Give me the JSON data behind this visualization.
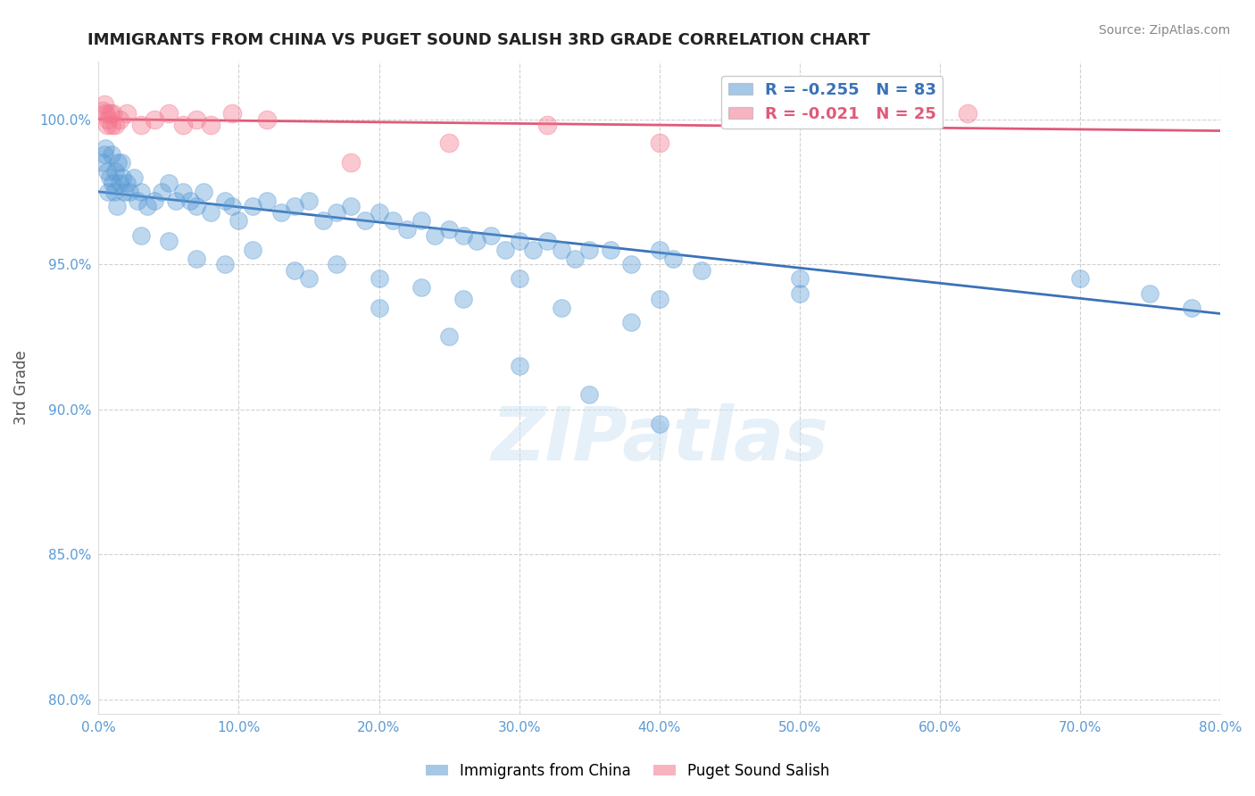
{
  "title": "IMMIGRANTS FROM CHINA VS PUGET SOUND SALISH 3RD GRADE CORRELATION CHART",
  "source_text": "Source: ZipAtlas.com",
  "ylabel": "3rd Grade",
  "xlim": [
    0.0,
    80.0
  ],
  "ylim": [
    79.5,
    102.0
  ],
  "xticks": [
    0.0,
    10.0,
    20.0,
    30.0,
    40.0,
    50.0,
    60.0,
    70.0,
    80.0
  ],
  "yticks": [
    80.0,
    85.0,
    90.0,
    95.0,
    100.0
  ],
  "ytick_labels": [
    "80.0%",
    "85.0%",
    "90.0%",
    "95.0%",
    "100.0%"
  ],
  "xtick_labels": [
    "0.0%",
    "10.0%",
    "20.0%",
    "30.0%",
    "40.0%",
    "50.0%",
    "60.0%",
    "70.0%",
    "80.0%"
  ],
  "blue_color": "#5b9bd5",
  "pink_color": "#f4768e",
  "blue_line_color": "#3a72b8",
  "pink_line_color": "#e05a78",
  "legend_blue_label": "R = -0.255   N = 83",
  "legend_pink_label": "R = -0.021   N = 25",
  "watermark": "ZIPatlas",
  "blue_scatter_x": [
    0.3,
    0.4,
    0.5,
    0.6,
    0.7,
    0.8,
    0.9,
    1.0,
    1.1,
    1.2,
    1.3,
    1.4,
    1.5,
    1.6,
    1.7,
    1.8,
    2.0,
    2.2,
    2.5,
    2.8,
    3.0,
    3.5,
    4.0,
    4.5,
    5.0,
    5.5,
    6.0,
    6.5,
    7.0,
    7.5,
    8.0,
    9.0,
    9.5,
    10.0,
    11.0,
    12.0,
    13.0,
    14.0,
    15.0,
    16.0,
    17.0,
    18.0,
    19.0,
    20.0,
    21.0,
    22.0,
    23.0,
    24.0,
    25.0,
    26.0,
    27.0,
    28.0,
    29.0,
    30.0,
    31.0,
    32.0,
    33.0,
    34.0,
    35.0,
    36.5,
    38.0,
    40.0,
    41.0,
    43.0,
    50.0,
    70.0,
    75.0,
    78.0,
    3.0,
    5.0,
    7.0,
    9.0,
    11.0,
    14.0,
    17.0,
    20.0,
    23.0,
    26.0,
    30.0,
    33.0,
    38.0,
    40.0,
    50.0
  ],
  "blue_scatter_y": [
    98.5,
    98.8,
    99.0,
    98.2,
    97.5,
    98.0,
    98.8,
    97.8,
    97.5,
    98.2,
    97.0,
    98.5,
    97.8,
    98.5,
    98.0,
    97.5,
    97.8,
    97.5,
    98.0,
    97.2,
    97.5,
    97.0,
    97.2,
    97.5,
    97.8,
    97.2,
    97.5,
    97.2,
    97.0,
    97.5,
    96.8,
    97.2,
    97.0,
    96.5,
    97.0,
    97.2,
    96.8,
    97.0,
    97.2,
    96.5,
    96.8,
    97.0,
    96.5,
    96.8,
    96.5,
    96.2,
    96.5,
    96.0,
    96.2,
    96.0,
    95.8,
    96.0,
    95.5,
    95.8,
    95.5,
    95.8,
    95.5,
    95.2,
    95.5,
    95.5,
    95.0,
    95.5,
    95.2,
    94.8,
    94.5,
    94.5,
    94.0,
    93.5,
    96.0,
    95.8,
    95.2,
    95.0,
    95.5,
    94.8,
    95.0,
    94.5,
    94.2,
    93.8,
    94.5,
    93.5,
    93.0,
    93.8,
    94.0
  ],
  "blue_scatter_isolated_x": [
    15.0,
    20.0,
    25.0,
    30.0,
    35.0,
    40.0
  ],
  "blue_scatter_isolated_y": [
    94.5,
    93.5,
    92.5,
    91.5,
    90.5,
    89.5
  ],
  "pink_scatter_x": [
    0.3,
    0.4,
    0.5,
    0.6,
    0.7,
    0.8,
    0.9,
    1.0,
    1.2,
    1.5,
    2.0,
    3.0,
    4.0,
    5.0,
    6.0,
    7.0,
    8.0,
    9.5,
    12.0,
    18.0,
    25.0,
    32.0,
    40.0,
    55.0,
    62.0
  ],
  "pink_scatter_y": [
    100.3,
    100.5,
    100.2,
    99.8,
    100.0,
    100.2,
    99.8,
    100.2,
    99.8,
    100.0,
    100.2,
    99.8,
    100.0,
    100.2,
    99.8,
    100.0,
    99.8,
    100.2,
    100.0,
    98.5,
    99.2,
    99.8,
    99.2,
    100.5,
    100.2
  ],
  "blue_trend_x": [
    0.0,
    80.0
  ],
  "blue_trend_y": [
    97.5,
    93.3
  ],
  "pink_trend_x": [
    0.0,
    80.0
  ],
  "pink_trend_y": [
    100.0,
    99.6
  ],
  "grid_color": "#cccccc",
  "tick_color": "#5b9bd5",
  "axis_label_color": "#555555",
  "background_color": "#ffffff"
}
